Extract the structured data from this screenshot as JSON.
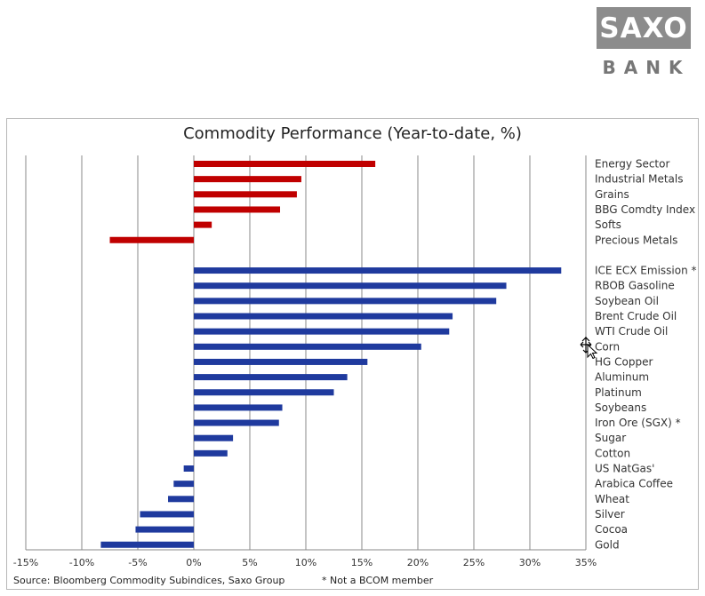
{
  "logo": {
    "main": "SAXO",
    "sub": "BANK",
    "box_color": "#8c8c8c",
    "text_color": "#777777"
  },
  "footer": {
    "source": "Source: Bloomberg Commodity Subindices, Saxo Group",
    "note": "* Not a BCOM member"
  },
  "cursor_icon": "move-cursor-icon",
  "chart_data": {
    "type": "bar",
    "orientation": "horizontal",
    "title": "Commodity Performance (Year-to-date, %)",
    "xlabel": "",
    "ylabel": "",
    "xlim": [
      -15,
      35
    ],
    "xticks": [
      -15,
      -10,
      -5,
      0,
      5,
      10,
      15,
      20,
      25,
      30,
      35
    ],
    "xtick_labels": [
      "-15%",
      "-10%",
      "-5%",
      "0%",
      "5%",
      "10%",
      "15%",
      "20%",
      "25%",
      "30%",
      "35%"
    ],
    "grid": "vertical",
    "colors": {
      "sector": "#c00000",
      "commodity": "#1f3a9e",
      "grid": "#8a8a8a"
    },
    "groups": [
      {
        "name": "sectors",
        "color_key": "sector",
        "categories": [
          "Energy Sector",
          "Industrial Metals",
          "Grains",
          "BBG Comdty Index",
          "Softs",
          "Precious Metals"
        ],
        "values": [
          16.2,
          9.6,
          9.2,
          7.7,
          1.6,
          -7.5
        ]
      },
      {
        "name": "commodities",
        "color_key": "commodity",
        "categories": [
          "ICE ECX Emission *",
          "RBOB Gasoline",
          "Soybean Oil",
          "Brent Crude Oil",
          "WTI Crude Oil",
          "Corn",
          "HG Copper",
          "Aluminum",
          "Platinum",
          "Soybeans",
          "Iron Ore (SGX) *",
          "Sugar",
          "Cotton",
          "US NatGas'",
          "Arabica Coffee",
          "Wheat",
          "Silver",
          "Cocoa",
          "Gold"
        ],
        "values": [
          32.8,
          27.9,
          27.0,
          23.1,
          22.8,
          20.3,
          15.5,
          13.7,
          12.5,
          7.9,
          7.6,
          3.5,
          3.0,
          -0.9,
          -1.8,
          -2.3,
          -4.8,
          -5.2,
          -8.3
        ]
      }
    ]
  }
}
